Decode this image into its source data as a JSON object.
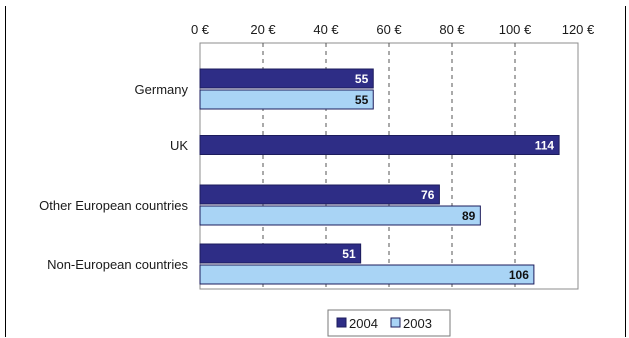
{
  "chart_data": {
    "type": "bar",
    "orientation": "horizontal",
    "categories": [
      "Germany",
      "UK",
      "Other European countries",
      "Non-European countries"
    ],
    "series": [
      {
        "name": "2004",
        "color": "#2e2d86",
        "values": [
          55,
          114,
          76,
          51
        ]
      },
      {
        "name": "2003",
        "color": "#a9d4f5",
        "values": [
          55,
          null,
          89,
          106
        ]
      }
    ],
    "x_ticks": [
      "0 €",
      "20 €",
      "40 €",
      "60 €",
      "80 €",
      "100 €",
      "120 €"
    ],
    "xlim": [
      0,
      120
    ],
    "axis_position": "top",
    "grid": "vertical-dashed",
    "legend_position": "bottom",
    "title": "",
    "xlabel": "",
    "ylabel": ""
  }
}
